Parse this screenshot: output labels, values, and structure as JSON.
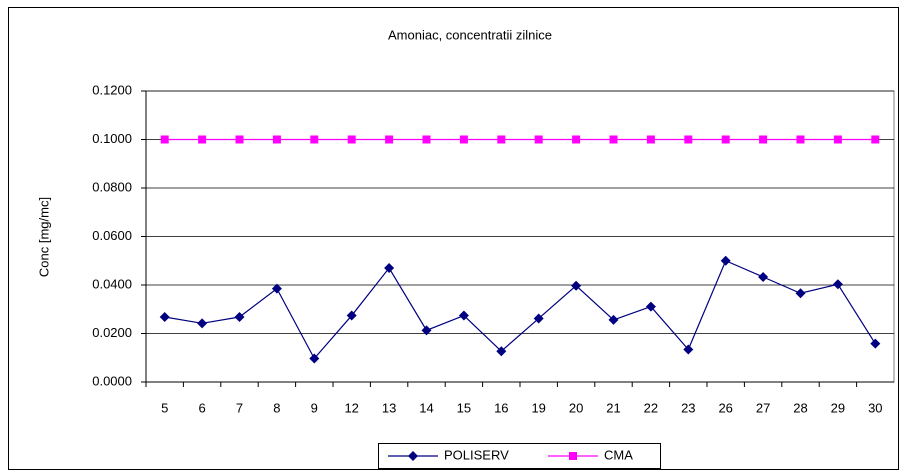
{
  "chart_data": {
    "type": "line",
    "title": "Amoniac, concentratii zilnice",
    "y_label": "Conc [mg/mc]",
    "categories": [
      "5",
      "6",
      "7",
      "8",
      "9",
      "12",
      "13",
      "14",
      "15",
      "16",
      "19",
      "20",
      "21",
      "22",
      "23",
      "26",
      "27",
      "28",
      "29",
      "30"
    ],
    "series": [
      {
        "name": "POLISERV",
        "color": "#000080",
        "marker": "diamond",
        "values": [
          0.0268,
          0.0242,
          0.0268,
          0.0385,
          0.0097,
          0.0274,
          0.047,
          0.0213,
          0.0274,
          0.0127,
          0.0262,
          0.0397,
          0.0256,
          0.0311,
          0.0134,
          0.05,
          0.0433,
          0.0366,
          0.0403,
          0.0158
        ]
      },
      {
        "name": "CMA",
        "color": "#ff00ff",
        "marker": "square",
        "values": [
          0.1,
          0.1,
          0.1,
          0.1,
          0.1,
          0.1,
          0.1,
          0.1,
          0.1,
          0.1,
          0.1,
          0.1,
          0.1,
          0.1,
          0.1,
          0.1,
          0.1,
          0.1,
          0.1,
          0.1
        ]
      }
    ],
    "ylim": [
      0,
      0.12
    ],
    "yticks": [
      {
        "value": 0,
        "label": "0.0000"
      },
      {
        "value": 0.02,
        "label": "0.0200"
      },
      {
        "value": 0.04,
        "label": "0.0400"
      },
      {
        "value": 0.06,
        "label": "0.0600"
      },
      {
        "value": 0.08,
        "label": "0.0800"
      },
      {
        "value": 0.1,
        "label": "0.1000"
      },
      {
        "value": 0.12,
        "label": "0.1200"
      }
    ],
    "grid": true,
    "legend": "bottom"
  }
}
